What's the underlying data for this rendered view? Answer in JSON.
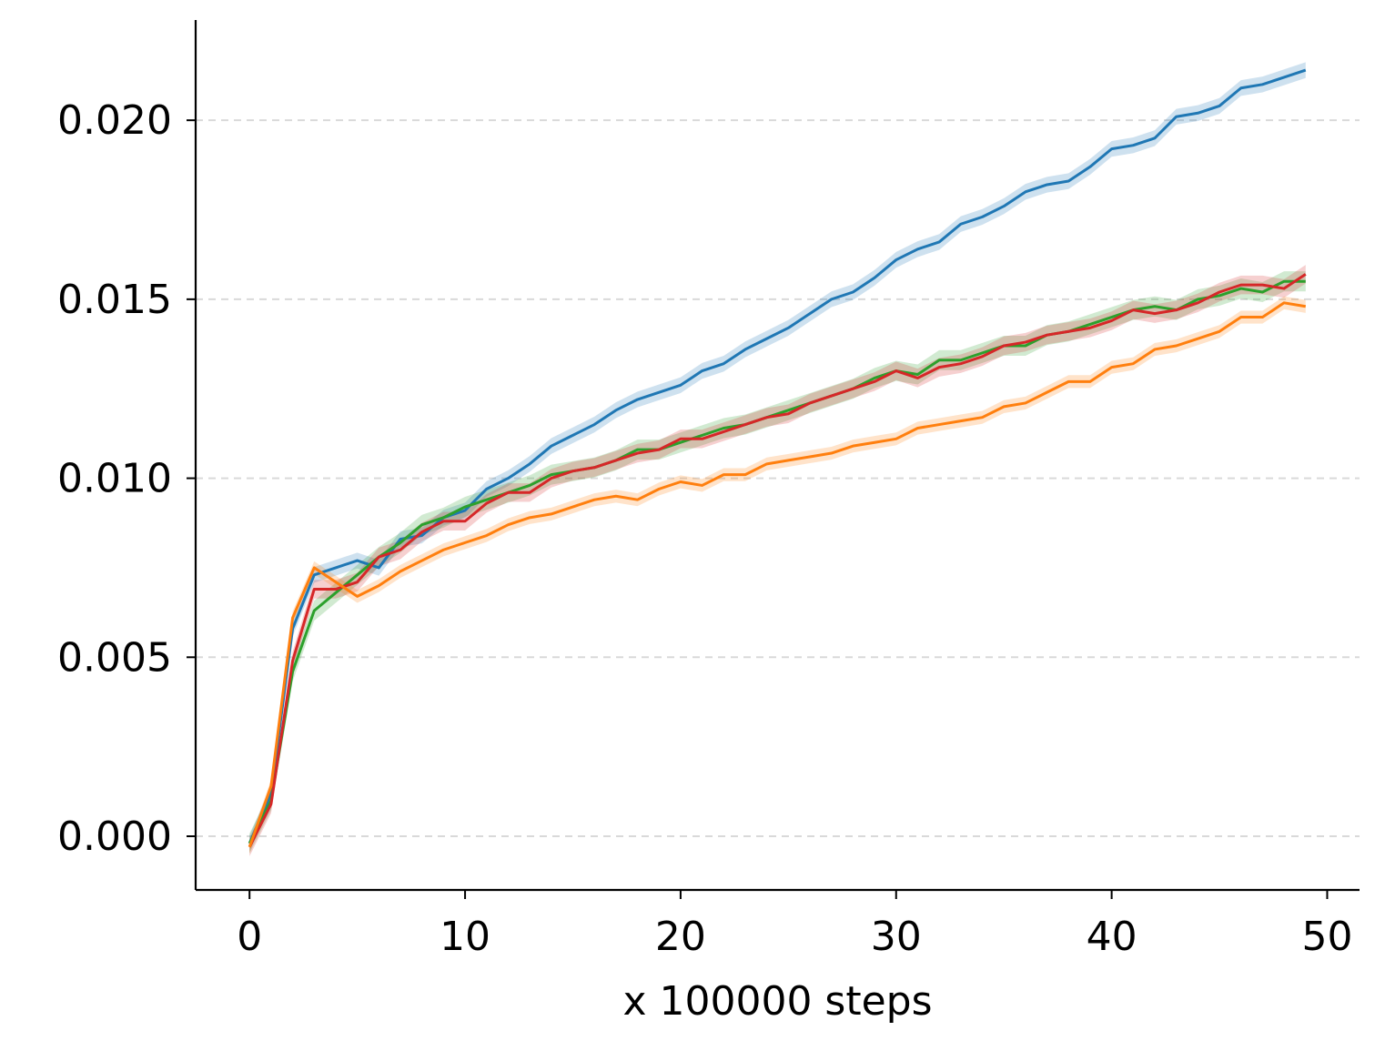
{
  "chart_data": {
    "type": "line",
    "title": "",
    "xlabel": "x 100000 steps",
    "ylabel": "",
    "xlim": [
      -2.5,
      51.5
    ],
    "ylim": [
      -0.0015,
      0.0228
    ],
    "xticks": [
      0,
      10,
      20,
      30,
      40,
      50
    ],
    "xtick_labels": [
      "0",
      "10",
      "20",
      "30",
      "40",
      "50"
    ],
    "yticks": [
      0.0,
      0.005,
      0.01,
      0.015,
      0.02
    ],
    "ytick_labels": [
      "0.000",
      "0.005",
      "0.010",
      "0.015",
      "0.020"
    ],
    "grid": "horizontal-dashed",
    "legend": "none",
    "x": [
      0,
      1,
      2,
      3,
      4,
      5,
      6,
      7,
      8,
      9,
      10,
      11,
      12,
      13,
      14,
      15,
      16,
      17,
      18,
      19,
      20,
      21,
      22,
      23,
      24,
      25,
      26,
      27,
      28,
      29,
      30,
      31,
      32,
      33,
      34,
      35,
      36,
      37,
      38,
      39,
      40,
      41,
      42,
      43,
      44,
      45,
      46,
      47,
      48,
      49
    ],
    "series": [
      {
        "color": "#1f77b4",
        "band": 0.00022,
        "values": [
          -0.0002,
          0.0012,
          0.0058,
          0.0073,
          0.0075,
          0.0077,
          0.0075,
          0.0083,
          0.0084,
          0.0089,
          0.0091,
          0.0097,
          0.01,
          0.0104,
          0.0109,
          0.0112,
          0.0115,
          0.0119,
          0.0122,
          0.0124,
          0.0126,
          0.013,
          0.0132,
          0.0136,
          0.0139,
          0.0142,
          0.0146,
          0.015,
          0.0152,
          0.0156,
          0.0161,
          0.0164,
          0.0166,
          0.0171,
          0.0173,
          0.0176,
          0.018,
          0.0182,
          0.0183,
          0.0187,
          0.0192,
          0.0193,
          0.0195,
          0.0201,
          0.0202,
          0.0204,
          0.0209,
          0.021,
          0.0212,
          0.0214
        ]
      },
      {
        "color": "#2ca02c",
        "band": 0.00028,
        "values": [
          -0.0002,
          0.001,
          0.0046,
          0.0063,
          0.0068,
          0.0073,
          0.0078,
          0.0082,
          0.0087,
          0.0089,
          0.0092,
          0.0094,
          0.0096,
          0.0098,
          0.0101,
          0.0102,
          0.0103,
          0.0105,
          0.0108,
          0.0108,
          0.011,
          0.0112,
          0.0114,
          0.0115,
          0.0117,
          0.0119,
          0.0121,
          0.0123,
          0.0125,
          0.0128,
          0.013,
          0.0129,
          0.0133,
          0.0133,
          0.0135,
          0.0137,
          0.0137,
          0.014,
          0.0141,
          0.0143,
          0.0145,
          0.0147,
          0.0148,
          0.0147,
          0.015,
          0.0151,
          0.0153,
          0.0152,
          0.0155,
          0.0155
        ]
      },
      {
        "color": "#d62728",
        "band": 0.00026,
        "values": [
          -0.0003,
          0.0009,
          0.0049,
          0.0069,
          0.0069,
          0.0071,
          0.0078,
          0.008,
          0.0085,
          0.0088,
          0.0088,
          0.0093,
          0.0096,
          0.0096,
          0.01,
          0.0102,
          0.0103,
          0.0105,
          0.0107,
          0.0108,
          0.0111,
          0.0111,
          0.0113,
          0.0115,
          0.0117,
          0.0118,
          0.0121,
          0.0123,
          0.0125,
          0.0127,
          0.013,
          0.0128,
          0.0131,
          0.0132,
          0.0134,
          0.0137,
          0.0138,
          0.014,
          0.0141,
          0.0142,
          0.0144,
          0.0147,
          0.0146,
          0.0147,
          0.0149,
          0.0152,
          0.0154,
          0.0154,
          0.0153,
          0.0157
        ]
      },
      {
        "color": "#ff7f0e",
        "band": 0.00018,
        "values": [
          -0.0003,
          0.0014,
          0.0061,
          0.0075,
          0.0071,
          0.0067,
          0.007,
          0.0074,
          0.0077,
          0.008,
          0.0082,
          0.0084,
          0.0087,
          0.0089,
          0.009,
          0.0092,
          0.0094,
          0.0095,
          0.0094,
          0.0097,
          0.0099,
          0.0098,
          0.0101,
          0.0101,
          0.0104,
          0.0105,
          0.0106,
          0.0107,
          0.0109,
          0.011,
          0.0111,
          0.0114,
          0.0115,
          0.0116,
          0.0117,
          0.012,
          0.0121,
          0.0124,
          0.0127,
          0.0127,
          0.0131,
          0.0132,
          0.0136,
          0.0137,
          0.0139,
          0.0141,
          0.0145,
          0.0145,
          0.0149,
          0.0148
        ]
      }
    ]
  }
}
